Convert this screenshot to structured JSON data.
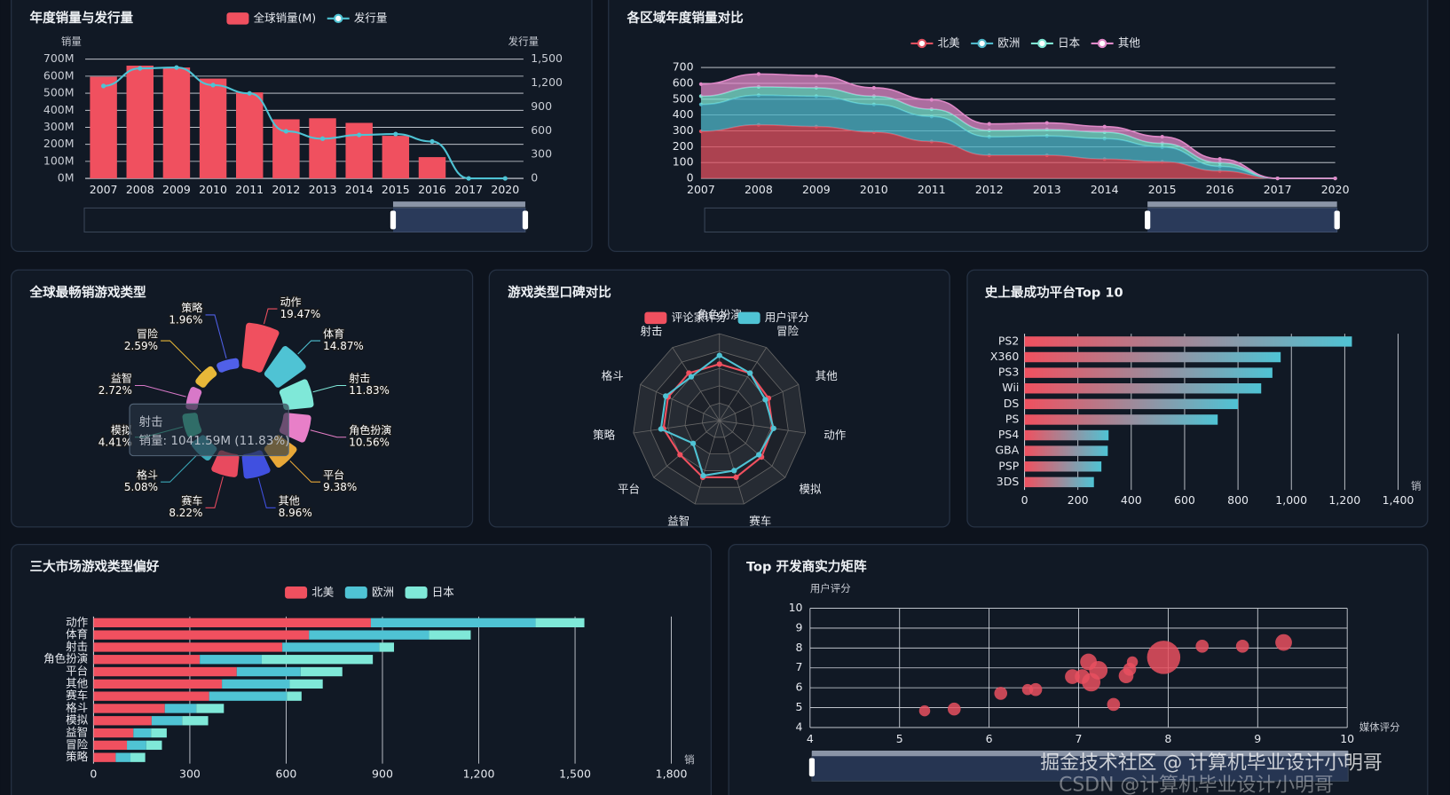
{
  "chart_data": [
    {
      "type": "bar",
      "title": "年度销量与发行量",
      "ylabel": "销量",
      "y2label": "发行量",
      "categories": [
        "2007",
        "2008",
        "2009",
        "2010",
        "2011",
        "2012",
        "2013",
        "2014",
        "2015",
        "2016",
        "2017",
        "2020"
      ],
      "series": [
        {
          "name": "全球销量(M)",
          "type": "bar",
          "color": "#f0505f",
          "values": [
            597,
            662,
            651,
            586,
            505,
            347,
            353,
            326,
            250,
            125,
            0,
            0
          ]
        },
        {
          "name": "发行量",
          "type": "line",
          "axis": "y2",
          "color": "#4fc3d4",
          "values": [
            1163,
            1384,
            1395,
            1174,
            1070,
            593,
            500,
            547,
            558,
            465,
            0,
            0
          ]
        }
      ],
      "ylim": [
        0,
        700
      ],
      "yticks": [
        {
          "value": 0,
          "label": "0M"
        },
        {
          "value": 100,
          "label": "100M"
        },
        {
          "value": 200,
          "label": "200M"
        },
        {
          "value": 300,
          "label": "300M"
        },
        {
          "value": 400,
          "label": "400M"
        },
        {
          "value": 500,
          "label": "500M"
        },
        {
          "value": 600,
          "label": "600M"
        },
        {
          "value": 700,
          "label": "700M"
        }
      ],
      "y2lim": [
        0,
        1500
      ],
      "y2ticks": [
        0,
        300,
        600,
        900,
        {
          "value": 1200,
          "label": "1,200"
        },
        {
          "value": 1500,
          "label": "1,500"
        }
      ],
      "grid": true
    },
    {
      "type": "area",
      "title": "各区域年度销量对比",
      "stacked": true,
      "categories": [
        "2007",
        "2008",
        "2009",
        "2010",
        "2011",
        "2012",
        "2013",
        "2014",
        "2015",
        "2016",
        "2017",
        "2020"
      ],
      "series": [
        {
          "name": "北美",
          "color": "#e0505f",
          "values": [
            297,
            338,
            327,
            292,
            233,
            146,
            146,
            122,
            105,
            47,
            0,
            0
          ]
        },
        {
          "name": "欧洲",
          "color": "#4fb7c9",
          "values": [
            170,
            187,
            192,
            175,
            158,
            116,
            122,
            129,
            93,
            29,
            0,
            0
          ]
        },
        {
          "name": "日本",
          "color": "#7fe5d3",
          "values": [
            52,
            53,
            53,
            52,
            46,
            41,
            41,
            41,
            24,
            23,
            0,
            0
          ]
        },
        {
          "name": "其他",
          "color": "#e089c8",
          "values": [
            76,
            81,
            76,
            53,
            59,
            41,
            41,
            35,
            41,
            24,
            0,
            0
          ]
        }
      ],
      "ylim": [
        0,
        700
      ],
      "yticks": [
        0,
        100,
        200,
        300,
        400,
        500,
        600,
        700
      ],
      "grid": true
    },
    {
      "type": "pie",
      "title": "全球最畅销游戏类型",
      "rose": true,
      "categories": [
        "动作",
        "体育",
        "射击",
        "角色扮演",
        "平台",
        "其他",
        "赛车",
        "格斗",
        "模拟",
        "益智",
        "冒险",
        "策略"
      ],
      "values": [
        19.47,
        14.87,
        11.83,
        10.56,
        9.38,
        8.96,
        8.22,
        5.08,
        4.41,
        2.72,
        2.59,
        1.96
      ],
      "value_labels": [
        "19.47%",
        "14.87%",
        "11.83%",
        "10.56%",
        "9.38%",
        "8.96%",
        "8.22%",
        "5.08%",
        "4.41%",
        "2.72%",
        "2.59%",
        "1.96%"
      ],
      "colors": [
        "#f0505f",
        "#4fc3d4",
        "#7fe8d8",
        "#e87fc8",
        "#e8a838",
        "#4050e0",
        "#e84a5f",
        "#3aa8b8",
        "#3fd8b0",
        "#d878c8",
        "#e8b838",
        "#5060e8"
      ],
      "tooltip": {
        "title": "射击",
        "text": "销量: 1041.59M (11.83%)"
      }
    },
    {
      "type": "radar",
      "title": "游戏类型口碑对比",
      "indicators": [
        "角色扮演",
        "冒险",
        "其他",
        "动作",
        "模拟",
        "赛车",
        "益智",
        "平台",
        "策略",
        "格斗",
        "射击"
      ],
      "rlim": [
        0,
        10
      ],
      "series": [
        {
          "name": "评论家评分",
          "color": "#f0505f",
          "values": [
            6.5,
            6.5,
            6.2,
            6.2,
            6.4,
            6.8,
            6.8,
            6.0,
            6.5,
            6.5,
            6.5
          ]
        },
        {
          "name": "用户评分",
          "color": "#4fc3d4",
          "values": [
            7.5,
            6.5,
            5.8,
            6.3,
            6.0,
            6.0,
            6.6,
            4.0,
            6.8,
            6.8,
            6.0
          ]
        }
      ]
    },
    {
      "type": "bar",
      "orientation": "horizontal",
      "title": "史上最成功平台Top 10",
      "xlabel": "销",
      "categories": [
        "PS2",
        "X360",
        "PS3",
        "Wii",
        "DS",
        "PS",
        "PS4",
        "GBA",
        "PSP",
        "3DS"
      ],
      "values": [
        1227,
        960,
        929,
        887,
        800,
        724,
        315,
        312,
        288,
        260
      ],
      "gradient": [
        "#f0505f",
        "#4fc3d4"
      ],
      "xlim": [
        0,
        1400
      ],
      "xticks": [
        0,
        200,
        400,
        600,
        800,
        {
          "value": 1000,
          "label": "1,000"
        },
        {
          "value": 1200,
          "label": "1,200"
        },
        {
          "value": 1400,
          "label": "1,400"
        }
      ],
      "grid": true
    },
    {
      "type": "bar",
      "orientation": "horizontal",
      "stacked": true,
      "title": "三大市场游戏类型偏好",
      "xlabel": "销",
      "categories": [
        "动作",
        "体育",
        "射击",
        "角色扮演",
        "平台",
        "其他",
        "赛车",
        "格斗",
        "模拟",
        "益智",
        "冒险",
        "策略"
      ],
      "series": [
        {
          "name": "北美",
          "color": "#f0505f",
          "values": [
            864,
            671,
            588,
            331,
            446,
            400,
            360,
            222,
            181,
            124,
            104,
            69
          ]
        },
        {
          "name": "欧洲",
          "color": "#4fc3d4",
          "values": [
            513,
            374,
            302,
            193,
            199,
            211,
            242,
            98,
            95,
            55,
            60,
            46
          ]
        },
        {
          "name": "日本",
          "color": "#7fe8d8",
          "values": [
            152,
            130,
            46,
            346,
            130,
            103,
            46,
            86,
            81,
            49,
            49,
            46
          ]
        }
      ],
      "xlim": [
        0,
        1800
      ],
      "xticks": [
        0,
        300,
        600,
        900,
        {
          "value": 1200,
          "label": "1,200"
        },
        {
          "value": 1500,
          "label": "1,500"
        },
        {
          "value": 1800,
          "label": "1,800"
        }
      ],
      "grid": true
    },
    {
      "type": "scatter",
      "title": "Top 开发商实力矩阵",
      "xlabel": "媒体评分",
      "ylabel": "用户评分",
      "color": "#e8505f",
      "x": [
        5.28,
        5.61,
        6.13,
        6.43,
        6.52,
        6.93,
        7.11,
        7.22,
        7.14,
        7.04,
        7.39,
        7.53,
        7.57,
        7.6,
        7.95,
        8.38,
        8.83,
        9.29
      ],
      "values": [
        4.84,
        4.93,
        5.72,
        5.91,
        5.91,
        6.56,
        7.3,
        6.88,
        6.28,
        6.56,
        5.16,
        6.6,
        6.93,
        7.3,
        7.53,
        8.09,
        8.09,
        8.28
      ],
      "sizes": [
        6,
        7,
        7,
        6,
        7,
        8,
        9,
        10,
        10,
        8,
        7,
        8,
        7,
        6,
        18,
        7,
        7,
        9
      ],
      "xlim": [
        4,
        10
      ],
      "xticks": [
        4,
        5,
        6,
        7,
        8,
        9,
        10
      ],
      "ylim": [
        4,
        10
      ],
      "yticks": [
        4,
        5,
        6,
        7,
        8,
        9,
        10
      ],
      "grid": true
    }
  ],
  "watermarks": [
    "掘金技术社区 @ 计算机毕业设计小明哥",
    "CSDN @计算机毕业设计小明哥"
  ]
}
